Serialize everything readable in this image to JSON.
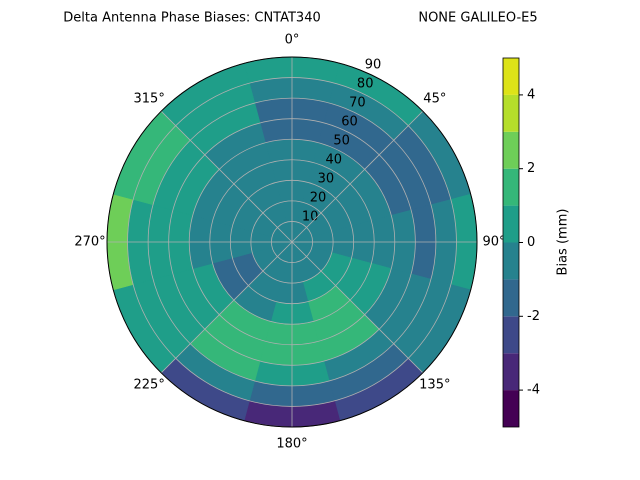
{
  "chart_data": {
    "type": "polar-contour",
    "title": "Delta Antenna Phase Biases: CNTAT340",
    "title_right": "NONE GALILEO-E5",
    "theta": [
      0,
      30,
      60,
      90,
      120,
      150,
      180,
      210,
      240,
      270,
      300,
      330
    ],
    "r": [
      5,
      15,
      25,
      35,
      45,
      55,
      65,
      75,
      85
    ],
    "z": [
      [
        -0.5,
        -0.5,
        -0.5,
        -0.5,
        -0.5,
        -0.5,
        -0.5,
        -0.5,
        -0.5,
        -0.5,
        -0.5,
        -0.5
      ],
      [
        -0.5,
        -0.5,
        -0.5,
        -0.5,
        -0.5,
        -0.5,
        -0.5,
        -0.5,
        -0.5,
        -0.5,
        -0.5,
        -0.5
      ],
      [
        -0.5,
        -0.5,
        -0.5,
        -0.5,
        0.5,
        0.5,
        -0.5,
        -0.5,
        -1.5,
        -0.5,
        -0.5,
        -0.5
      ],
      [
        -0.5,
        -0.5,
        -0.5,
        -0.5,
        0.5,
        1.5,
        0.5,
        -0.5,
        -1.5,
        -0.5,
        -0.5,
        -0.5
      ],
      [
        -0.5,
        -0.5,
        -0.5,
        -0.5,
        0.5,
        1.5,
        1.5,
        1.5,
        0.5,
        -0.5,
        -0.5,
        -0.5
      ],
      [
        -1.5,
        -1.5,
        -1.5,
        -0.5,
        -0.5,
        1.5,
        1.5,
        1.5,
        0.5,
        0.5,
        0.5,
        -0.5
      ],
      [
        -1.5,
        -1.5,
        -1.5,
        -1.5,
        -0.5,
        -0.5,
        0.5,
        1.5,
        0.5,
        0.5,
        0.5,
        0.5
      ],
      [
        -0.5,
        -0.5,
        -1.5,
        -0.5,
        -0.5,
        -1.5,
        -1.5,
        -0.5,
        0.5,
        0.5,
        1.5,
        0.5
      ],
      [
        0.5,
        0.5,
        -0.5,
        0.5,
        -0.5,
        -2.5,
        -3.5,
        -2.5,
        0.5,
        2.5,
        1.5,
        0.5
      ]
    ],
    "levels": [
      -5,
      -4,
      -3,
      -2,
      -1,
      0,
      1,
      2,
      3,
      4,
      5
    ],
    "colors": [
      "#440154",
      "#482878",
      "#3e4989",
      "#31688e",
      "#26828e",
      "#1f9e89",
      "#35b779",
      "#6ece58",
      "#b5de2b",
      "#dde318"
    ],
    "rlim": [
      0,
      90
    ],
    "rticks": [
      10,
      20,
      30,
      40,
      50,
      60,
      70,
      80,
      90
    ],
    "thetaticks": [
      {
        "value": 0,
        "label": "0°"
      },
      {
        "value": 45,
        "label": "45°"
      },
      {
        "value": 90,
        "label": "90°"
      },
      {
        "value": 135,
        "label": "135°"
      },
      {
        "value": 180,
        "label": "180°"
      },
      {
        "value": 225,
        "label": "225°"
      },
      {
        "value": 270,
        "label": "270°"
      },
      {
        "value": 315,
        "label": "315°"
      }
    ],
    "colorbar_label": "Bias (mm)",
    "colorbar_lim": [
      -5,
      5
    ],
    "colorbar_ticks": [
      -4,
      -2,
      0,
      2,
      4
    ],
    "grid": true
  }
}
